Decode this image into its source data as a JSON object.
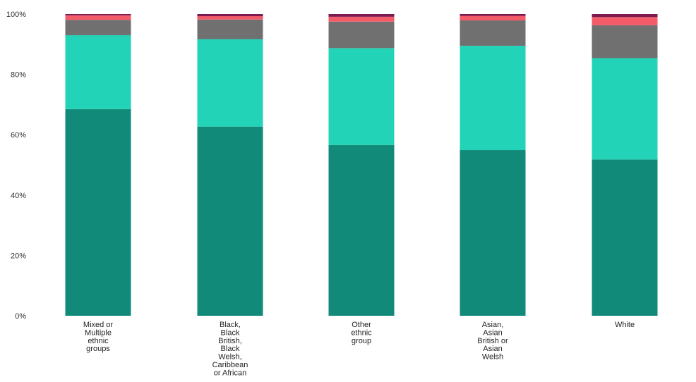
{
  "chart_data": {
    "type": "bar",
    "stacked": true,
    "normalized": true,
    "categories": [
      [
        "Mixed or",
        "Multiple",
        "ethnic",
        "groups"
      ],
      [
        "Black,",
        "Black",
        "British,",
        "Black",
        "Welsh,",
        "Caribbean",
        "or African"
      ],
      [
        "Other",
        "ethnic",
        "group"
      ],
      [
        "Asian,",
        "Asian",
        "British or",
        "Asian",
        "Welsh"
      ],
      [
        "White"
      ]
    ],
    "series": [
      {
        "color": "#128a79",
        "values": [
          68.5,
          62.7,
          56.6,
          54.9,
          51.8
        ]
      },
      {
        "color": "#22d3b7",
        "values": [
          24.5,
          29.0,
          32.1,
          34.6,
          33.6
        ]
      },
      {
        "color": "#707070",
        "values": [
          5.1,
          6.5,
          8.8,
          8.4,
          10.9
        ]
      },
      {
        "color": "#f45b69",
        "values": [
          1.5,
          1.1,
          1.6,
          1.5,
          2.7
        ]
      },
      {
        "color": "#7a1a4f",
        "values": [
          0.4,
          0.7,
          0.9,
          0.6,
          1.0
        ]
      }
    ],
    "yticks": [
      "0%",
      "20%",
      "40%",
      "60%",
      "80%",
      "100%"
    ],
    "ylim": [
      0,
      100
    ],
    "grid": false,
    "legend": "none"
  }
}
